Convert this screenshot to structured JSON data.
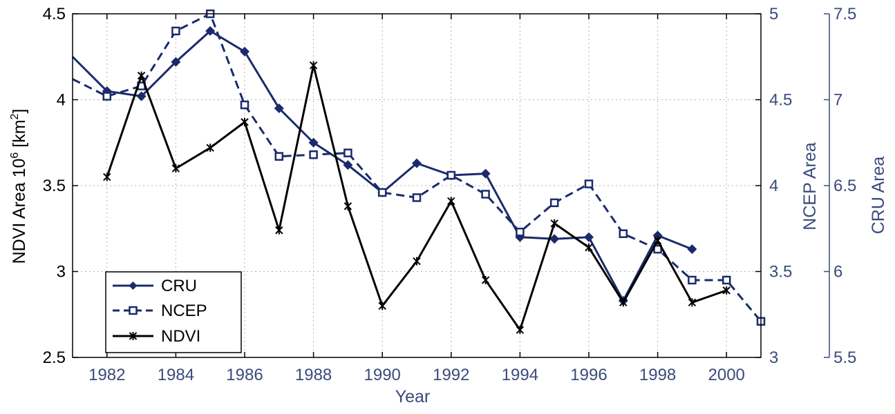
{
  "chart_data": {
    "type": "line",
    "xlabel": "Year",
    "x": [
      1981,
      1982,
      1983,
      1984,
      1985,
      1986,
      1987,
      1988,
      1989,
      1990,
      1991,
      1992,
      1993,
      1994,
      1995,
      1996,
      1997,
      1998,
      1999,
      2000,
      2001
    ],
    "xlim": [
      1981,
      2001
    ],
    "xticks": [
      "1982",
      "1984",
      "1986",
      "1988",
      "1990",
      "1992",
      "1994",
      "1996",
      "1998",
      "2000"
    ],
    "grid": true,
    "legend": "bottom-left",
    "axes": {
      "left": {
        "label_main": "NDVI Area 10",
        "label_sup1": "6",
        "label_mid": " [km",
        "label_sup2": "2",
        "label_end": "]",
        "ylim": [
          2.5,
          4.5
        ],
        "ticks": [
          "2.5",
          "3",
          "3.5",
          "4",
          "4.5"
        ],
        "color": "#000000"
      },
      "right1": {
        "label": "NCEP Area",
        "ylim": [
          3,
          5
        ],
        "ticks": [
          "3",
          "3.5",
          "4",
          "4.5",
          "5"
        ],
        "color": "#3b4a7a"
      },
      "right2": {
        "label": "CRU Area",
        "ylim": [
          5.5,
          7.5
        ],
        "ticks": [
          "5.5",
          "6",
          "6.5",
          "7",
          "7.5"
        ],
        "color": "#3b4a7a"
      }
    },
    "series": [
      {
        "name": "CRU",
        "axis": "right2",
        "style": "solid",
        "marker": "diamond",
        "color": "#1a2a6c",
        "x": [
          1981,
          1982,
          1983,
          1984,
          1985,
          1986,
          1987,
          1988,
          1989,
          1990,
          1991,
          1992,
          1993,
          1994,
          1995,
          1996,
          1997,
          1998,
          1999
        ],
        "values": [
          7.25,
          7.05,
          7.02,
          7.22,
          7.4,
          7.28,
          6.95,
          6.75,
          6.62,
          6.46,
          6.63,
          6.56,
          6.57,
          6.2,
          6.19,
          6.2,
          5.83,
          6.21,
          6.13
        ],
        "markers_from": 1
      },
      {
        "name": "NCEP",
        "axis": "right1",
        "style": "dashed",
        "marker": "square",
        "color": "#1a2a6c",
        "x": [
          1981,
          1982,
          1983,
          1984,
          1985,
          1986,
          1987,
          1988,
          1989,
          1990,
          1991,
          1992,
          1993,
          1994,
          1995,
          1996,
          1997,
          1998,
          1999,
          2000,
          2001
        ],
        "values": [
          4.62,
          4.52,
          4.58,
          4.9,
          5.0,
          4.47,
          4.17,
          4.18,
          4.19,
          3.96,
          3.93,
          4.06,
          3.95,
          3.73,
          3.9,
          4.01,
          3.72,
          3.63,
          3.45,
          3.45,
          3.21
        ],
        "markers_from": 1
      },
      {
        "name": "NDVI",
        "axis": "left",
        "style": "solid",
        "marker": "star",
        "color": "#000000",
        "x": [
          1982,
          1983,
          1984,
          1985,
          1986,
          1987,
          1988,
          1989,
          1990,
          1991,
          1992,
          1993,
          1994,
          1995,
          1996,
          1997,
          1998,
          1999,
          2000
        ],
        "values": [
          3.55,
          4.14,
          3.6,
          3.72,
          3.87,
          3.24,
          4.2,
          3.38,
          2.8,
          3.06,
          3.41,
          2.95,
          2.66,
          3.28,
          3.14,
          2.82,
          3.18,
          2.82,
          2.89
        ],
        "markers_from": 0
      }
    ]
  }
}
